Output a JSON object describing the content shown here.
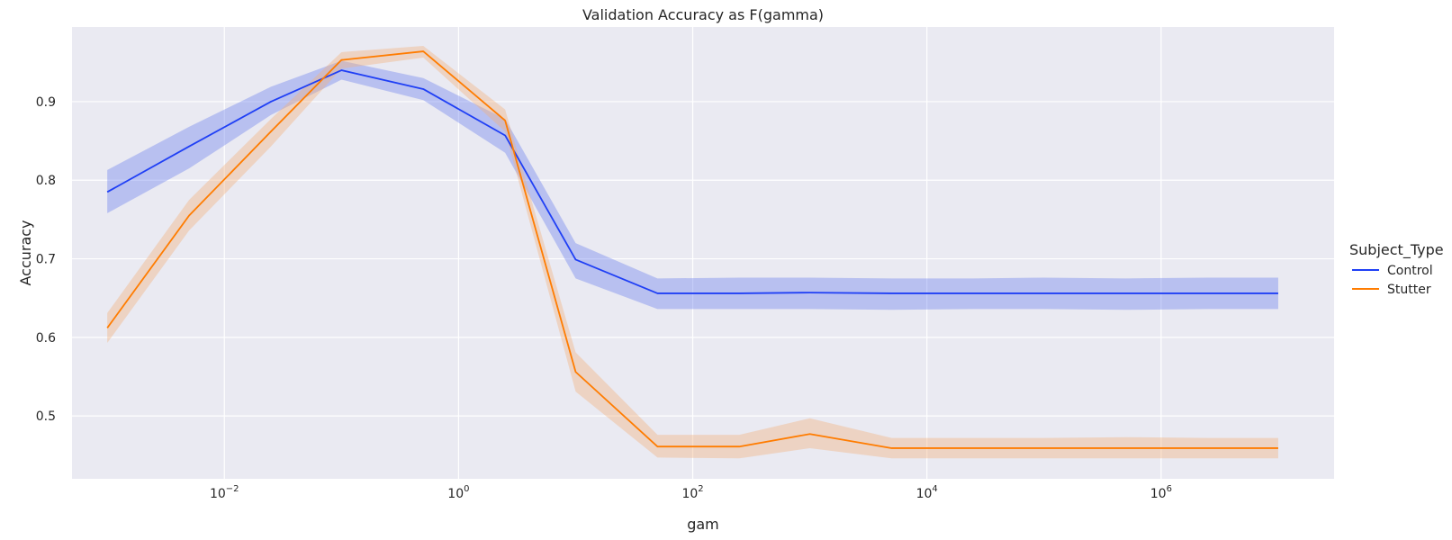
{
  "chart_data": {
    "type": "line",
    "title": "Validation Accuracy as F(gamma)",
    "xlabel": "gam",
    "ylabel": "Accuracy",
    "x_scale": "log",
    "xlim": [
      0.0005,
      30000000
    ],
    "ylim": [
      0.42,
      0.995
    ],
    "grid": true,
    "x_ticks": [
      {
        "value": 0.01,
        "base": "10",
        "exp": "−2"
      },
      {
        "value": 1,
        "base": "10",
        "exp": "0"
      },
      {
        "value": 100,
        "base": "10",
        "exp": "2"
      },
      {
        "value": 10000,
        "base": "10",
        "exp": "4"
      },
      {
        "value": 1000000,
        "base": "10",
        "exp": "6"
      }
    ],
    "y_ticks": [
      {
        "value": 0.5,
        "label": "0.5"
      },
      {
        "value": 0.6,
        "label": "0.6"
      },
      {
        "value": 0.7,
        "label": "0.7"
      },
      {
        "value": 0.8,
        "label": "0.8"
      },
      {
        "value": 0.9,
        "label": "0.9"
      }
    ],
    "x": [
      0.001,
      0.005,
      0.025,
      0.1,
      0.5,
      2.5,
      10,
      50,
      250,
      1000,
      5000,
      25000,
      100000,
      500000,
      2500000,
      10000000
    ],
    "legend_title": "Subject_Type",
    "legend_position": "right",
    "series": [
      {
        "name": "Control",
        "color": "#1f3ff5",
        "band_color": "#6d83ee",
        "values": [
          0.785,
          0.843,
          0.9,
          0.94,
          0.916,
          0.857,
          0.699,
          0.656,
          0.656,
          0.657,
          0.656,
          0.656,
          0.656,
          0.656,
          0.656,
          0.656
        ],
        "ci_lower": [
          0.758,
          0.815,
          0.883,
          0.928,
          0.902,
          0.835,
          0.675,
          0.636,
          0.636,
          0.636,
          0.635,
          0.636,
          0.636,
          0.635,
          0.636,
          0.636
        ],
        "ci_upper": [
          0.813,
          0.868,
          0.919,
          0.952,
          0.93,
          0.878,
          0.72,
          0.675,
          0.676,
          0.676,
          0.675,
          0.675,
          0.676,
          0.675,
          0.676,
          0.676
        ]
      },
      {
        "name": "Stutter",
        "color": "#ff7c00",
        "band_color": "#f2b17e",
        "values": [
          0.612,
          0.755,
          0.862,
          0.953,
          0.964,
          0.876,
          0.556,
          0.461,
          0.461,
          0.477,
          0.459,
          0.459,
          0.459,
          0.459,
          0.459,
          0.459
        ],
        "ci_lower": [
          0.593,
          0.736,
          0.843,
          0.942,
          0.956,
          0.862,
          0.531,
          0.447,
          0.446,
          0.459,
          0.446,
          0.446,
          0.446,
          0.446,
          0.446,
          0.446
        ],
        "ci_upper": [
          0.631,
          0.775,
          0.878,
          0.963,
          0.971,
          0.89,
          0.581,
          0.476,
          0.476,
          0.497,
          0.472,
          0.472,
          0.472,
          0.473,
          0.472,
          0.472
        ]
      }
    ]
  }
}
